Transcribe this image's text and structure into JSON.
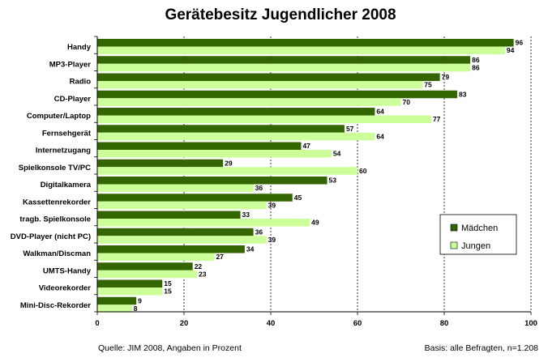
{
  "chart_data": {
    "type": "bar",
    "orientation": "horizontal",
    "title": "Gerätebesitz Jugendlicher 2008",
    "categories": [
      "Handy",
      "MP3-Player",
      "Radio",
      "CD-Player",
      "Computer/Laptop",
      "Fernsehgerät",
      "Internetzugang",
      "Spielkonsole TV/PC",
      "Digitalkamera",
      "Kassettenrekorder",
      "tragb. Spielkonsole",
      "DVD-Player (nicht PC)",
      "Walkman/Discman",
      "UMTS-Handy",
      "Videorekorder",
      "Mini-Disc-Rekorder"
    ],
    "series": [
      {
        "name": "Mädchen",
        "color": "#336600",
        "values": [
          96,
          86,
          79,
          83,
          64,
          57,
          47,
          29,
          53,
          45,
          33,
          36,
          34,
          22,
          15,
          9
        ]
      },
      {
        "name": "Jungen",
        "color": "#ccff99",
        "values": [
          94,
          86,
          75,
          70,
          77,
          64,
          54,
          60,
          36,
          39,
          49,
          39,
          27,
          23,
          15,
          8
        ]
      }
    ],
    "xlim": [
      0,
      100
    ],
    "xticks": [
      0,
      20,
      40,
      60,
      80,
      100
    ],
    "grid": "vertical dotted",
    "legend": "right"
  },
  "footer": {
    "source": "Quelle: JIM 2008, Angaben in Prozent",
    "basis": "Basis: alle Befragten, n=1.208"
  }
}
